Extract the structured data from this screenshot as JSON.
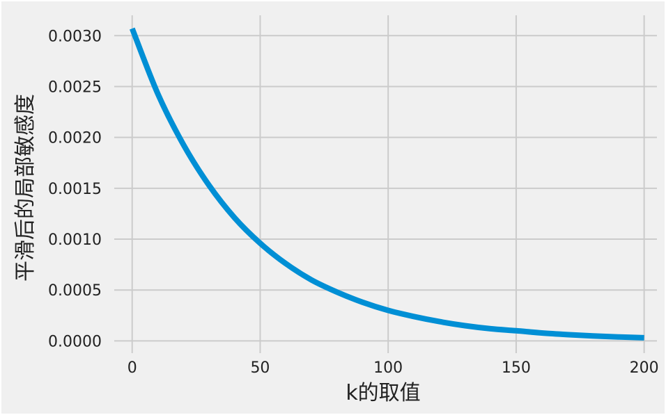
{
  "chart_data": {
    "type": "line",
    "title": "",
    "xlabel": "k的取值",
    "ylabel": "平滑后的局部敏感度",
    "xlim": [
      -7,
      205
    ],
    "ylim": [
      -0.00012,
      0.0032
    ],
    "xticks": [
      0,
      50,
      100,
      150,
      200
    ],
    "xtick_labels": [
      "0",
      "50",
      "100",
      "150",
      "200"
    ],
    "yticks": [
      0.0,
      0.0005,
      0.001,
      0.0015,
      0.002,
      0.0025,
      0.003
    ],
    "ytick_labels": [
      "0.0000",
      "0.0005",
      "0.0010",
      "0.0015",
      "0.0020",
      "0.0025",
      "0.0030"
    ],
    "grid": true,
    "colors": {
      "background": "#f0f0f0",
      "grid": "#cbcbcb",
      "line": "#008fd5"
    },
    "series": [
      {
        "x": [
          0,
          10,
          20,
          30,
          40,
          50,
          60,
          70,
          80,
          90,
          100,
          110,
          120,
          130,
          140,
          150,
          160,
          170,
          180,
          190,
          200
        ],
        "values": [
          0.00307,
          0.00243,
          0.00193,
          0.00153,
          0.00121,
          0.00096,
          0.00076,
          0.0006,
          0.00048,
          0.00038,
          0.0003,
          0.00024,
          0.00019,
          0.00015,
          0.00012,
          0.0001,
          7.8e-05,
          6.2e-05,
          4.9e-05,
          3.9e-05,
          3.1e-05
        ]
      }
    ]
  }
}
